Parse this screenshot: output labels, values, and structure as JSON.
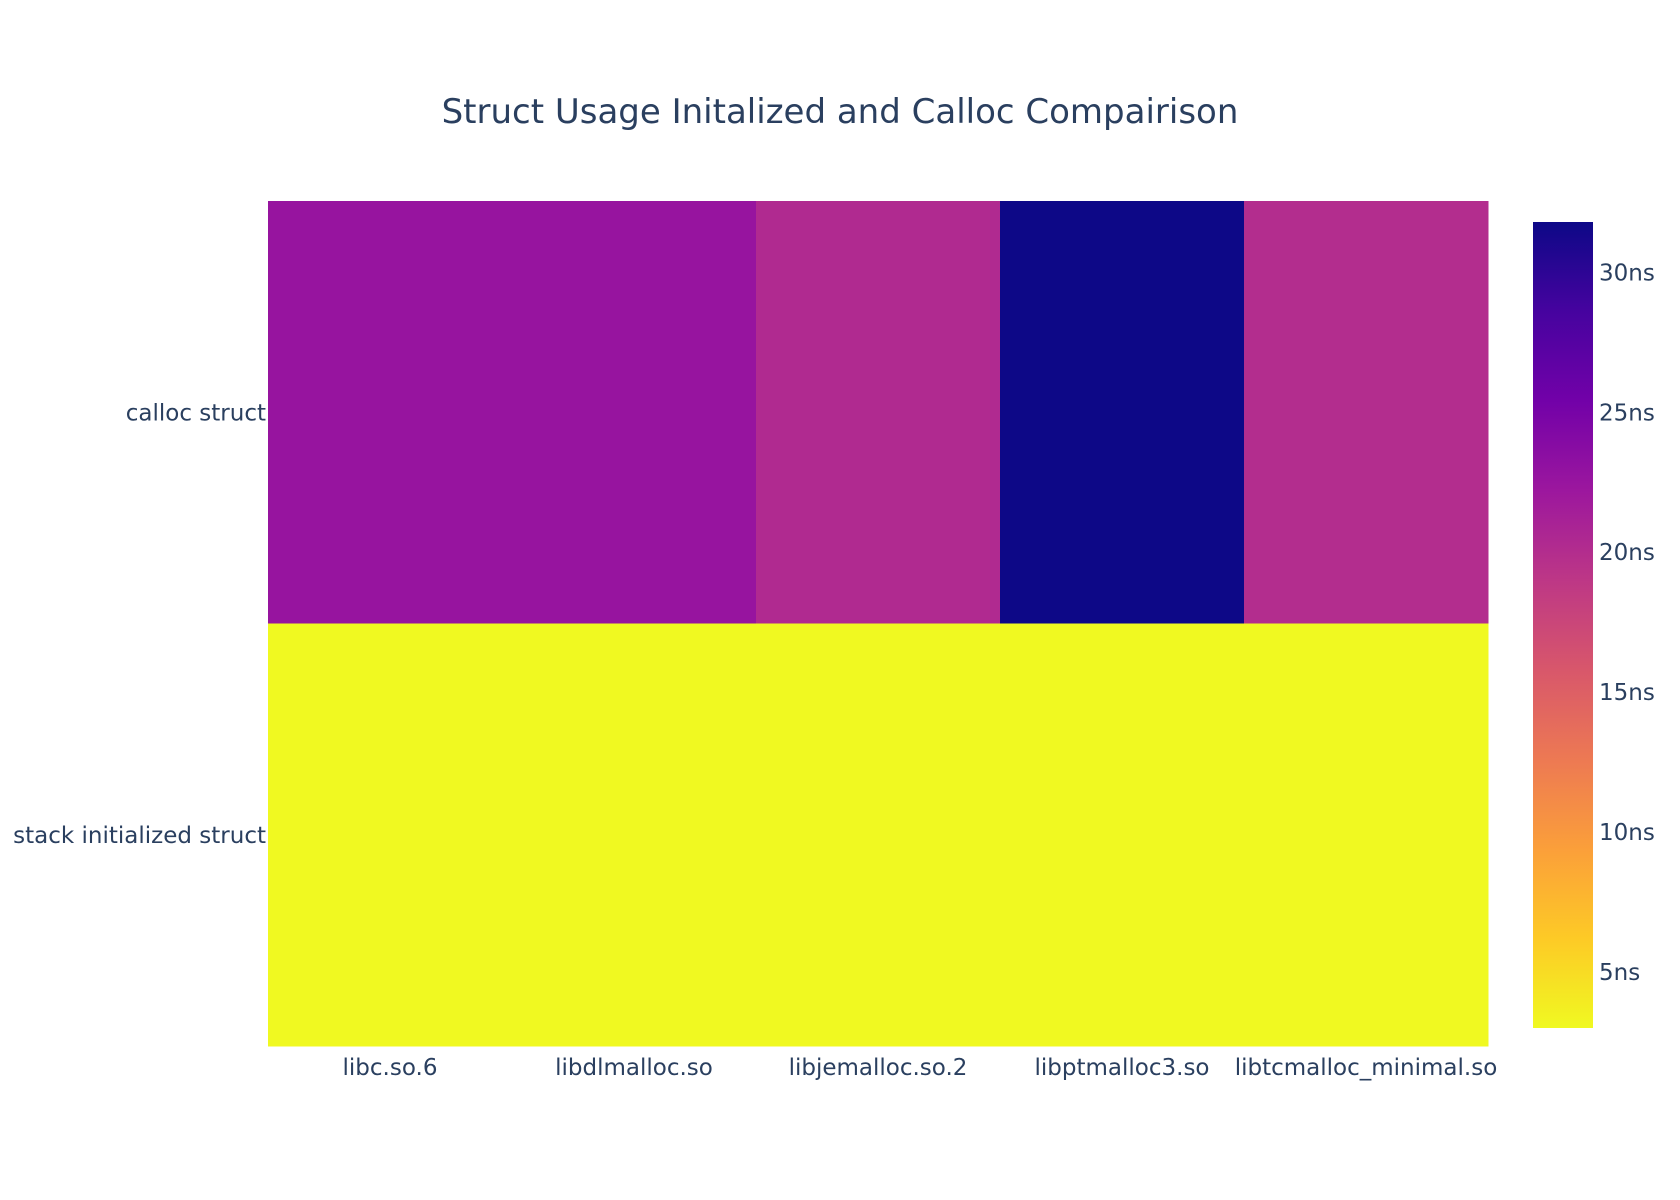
{
  "chart_data": {
    "type": "heatmap",
    "title": "Struct Usage Initalized and Calloc Compairison",
    "x": [
      "libc.so.6",
      "libdlmalloc.so",
      "libjemalloc.so.2",
      "libptmalloc3.so",
      "libtcmalloc_minimal.so"
    ],
    "y": [
      "calloc struct",
      "stack initialized struct"
    ],
    "z": [
      [
        22.6,
        22.6,
        20.3,
        31.8,
        20.0
      ],
      [
        3.0,
        3.0,
        3.0,
        3.0,
        3.0
      ]
    ],
    "colorscale": "plasma",
    "zmin": 3.0,
    "zmax": 31.8,
    "colorbar": {
      "position": "right",
      "ticks": [
        5,
        10,
        15,
        20,
        25,
        30
      ],
      "tick_labels": [
        "5ns",
        "10ns",
        "15ns",
        "20ns",
        "25ns",
        "30ns"
      ]
    },
    "x_band_edges": [
      -0.5,
      1.5,
      2.5,
      3.5,
      4.5
    ],
    "colors": {
      "plasma": [
        "#0d0887",
        "#46039f",
        "#7201a8",
        "#9c179e",
        "#bd3786",
        "#d8576b",
        "#ed7953",
        "#fb9f3a",
        "#fdca26",
        "#f0f921"
      ],
      "text": "#2a3f5f"
    }
  }
}
